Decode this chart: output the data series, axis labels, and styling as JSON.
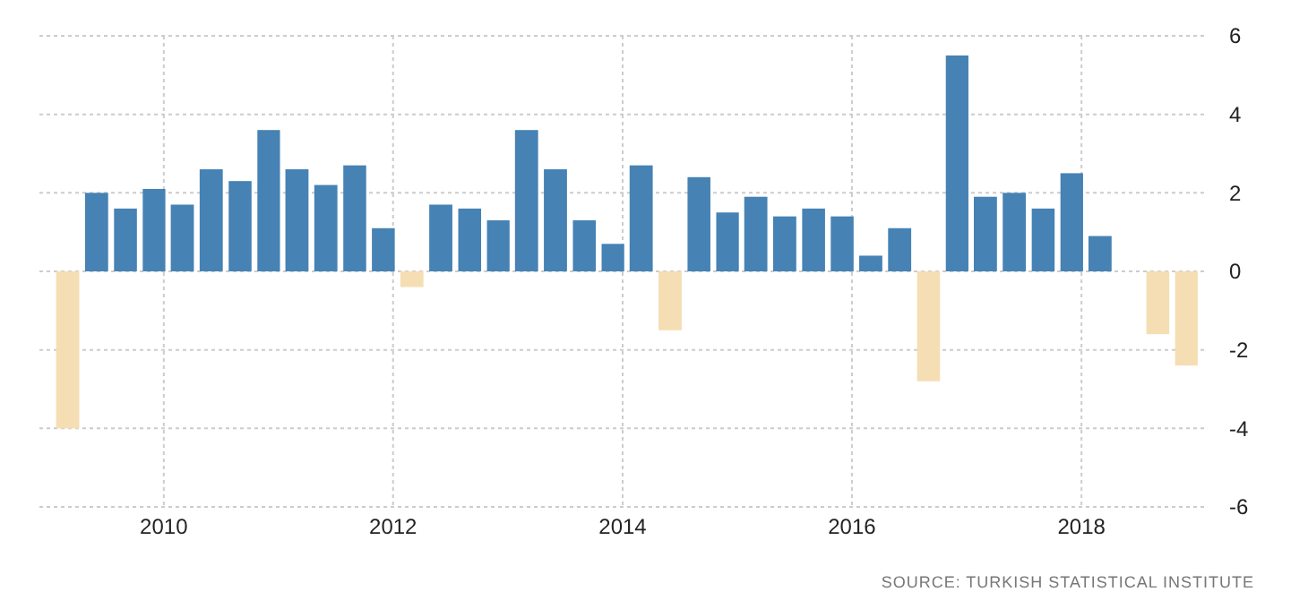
{
  "chart_data": {
    "type": "bar",
    "x": [
      "2009-03",
      "2009-06",
      "2009-09",
      "2009-12",
      "2010-03",
      "2010-06",
      "2010-09",
      "2010-12",
      "2011-03",
      "2011-06",
      "2011-09",
      "2011-12",
      "2012-03",
      "2012-06",
      "2012-09",
      "2012-12",
      "2013-03",
      "2013-06",
      "2013-09",
      "2013-12",
      "2014-03",
      "2014-06",
      "2014-09",
      "2014-12",
      "2015-03",
      "2015-06",
      "2015-09",
      "2015-12",
      "2016-03",
      "2016-06",
      "2016-09",
      "2016-12",
      "2017-03",
      "2017-06",
      "2017-09",
      "2017-12",
      "2018-03",
      "2018-09",
      "2018-12"
    ],
    "values": [
      -4.0,
      2.0,
      1.6,
      2.1,
      1.7,
      2.6,
      2.3,
      3.6,
      2.6,
      2.2,
      2.7,
      1.1,
      -0.4,
      1.7,
      1.6,
      1.3,
      3.6,
      2.6,
      1.3,
      0.7,
      2.7,
      -1.5,
      2.4,
      1.5,
      1.9,
      1.4,
      1.6,
      1.4,
      0.4,
      1.1,
      -2.8,
      5.5,
      1.9,
      2.0,
      1.6,
      2.5,
      0.9,
      -1.6,
      -2.4
    ],
    "colors": [
      "#f5deb3",
      "#4682b4",
      "#4682b4",
      "#4682b4",
      "#4682b4",
      "#4682b4",
      "#4682b4",
      "#4682b4",
      "#4682b4",
      "#4682b4",
      "#4682b4",
      "#4682b4",
      "#f5deb3",
      "#4682b4",
      "#4682b4",
      "#4682b4",
      "#4682b4",
      "#4682b4",
      "#4682b4",
      "#4682b4",
      "#4682b4",
      "#f5deb3",
      "#4682b4",
      "#4682b4",
      "#4682b4",
      "#4682b4",
      "#4682b4",
      "#4682b4",
      "#4682b4",
      "#4682b4",
      "#f5deb3",
      "#4682b4",
      "#4682b4",
      "#4682b4",
      "#4682b4",
      "#4682b4",
      "#4682b4",
      "#f5deb3",
      "#f5deb3"
    ],
    "xlim": [
      "2008-12-01",
      "2019-02-01"
    ],
    "xticks": [
      "2010",
      "2012",
      "2014",
      "2016",
      "2018"
    ],
    "ylim": [
      -6,
      6
    ],
    "yticks": [
      -6,
      -4,
      -2,
      0,
      2,
      4,
      6
    ],
    "grid": true,
    "annotations": [
      "SOURCE: TURKISH STATISTICAL INSTITUTE"
    ]
  }
}
